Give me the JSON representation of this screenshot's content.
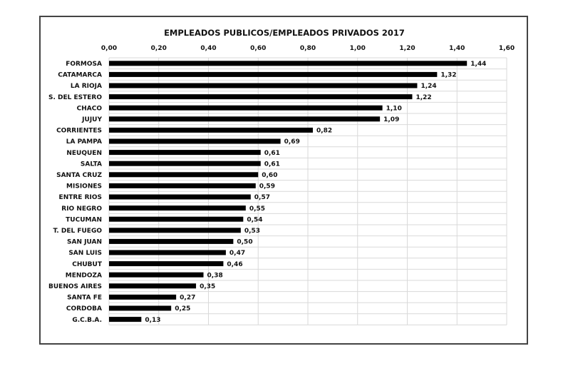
{
  "chart_data": {
    "type": "bar",
    "orientation": "horizontal",
    "title": "EMPLEADOS PUBLICOS/EMPLEADOS PRIVADOS 2017",
    "xlim": [
      0,
      1.6
    ],
    "x_ticks": [
      "0,00",
      "0,20",
      "0,40",
      "0,60",
      "0,80",
      "1,00",
      "1,20",
      "1,40",
      "1,60"
    ],
    "axis_position": "top",
    "grid": true,
    "bar_color": "#000000",
    "categories": [
      "FORMOSA",
      "CATAMARCA",
      "LA RIOJA",
      "S. DEL ESTERO",
      "CHACO",
      "JUJUY",
      "CORRIENTES",
      "LA PAMPA",
      "NEUQUEN",
      "SALTA",
      "SANTA CRUZ",
      "MISIONES",
      "ENTRE RIOS",
      "RIO NEGRO",
      "TUCUMAN",
      "T. DEL FUEGO",
      "SAN JUAN",
      "SAN LUIS",
      "CHUBUT",
      "MENDOZA",
      "BUENOS AIRES",
      "SANTA FE",
      "CORDOBA",
      "G.C.B.A."
    ],
    "values": [
      1.44,
      1.32,
      1.24,
      1.22,
      1.1,
      1.09,
      0.82,
      0.69,
      0.61,
      0.61,
      0.6,
      0.59,
      0.57,
      0.55,
      0.54,
      0.53,
      0.5,
      0.47,
      0.46,
      0.38,
      0.35,
      0.27,
      0.25,
      0.13
    ],
    "value_labels": [
      "1,44",
      "1,32",
      "1,24",
      "1,22",
      "1,10",
      "1,09",
      "0,82",
      "0,69",
      "0,61",
      "0,61",
      "0,60",
      "0,59",
      "0,57",
      "0,55",
      "0,54",
      "0,53",
      "0,50",
      "0,47",
      "0,46",
      "0,38",
      "0,35",
      "0,27",
      "0,25",
      "0,13"
    ]
  }
}
